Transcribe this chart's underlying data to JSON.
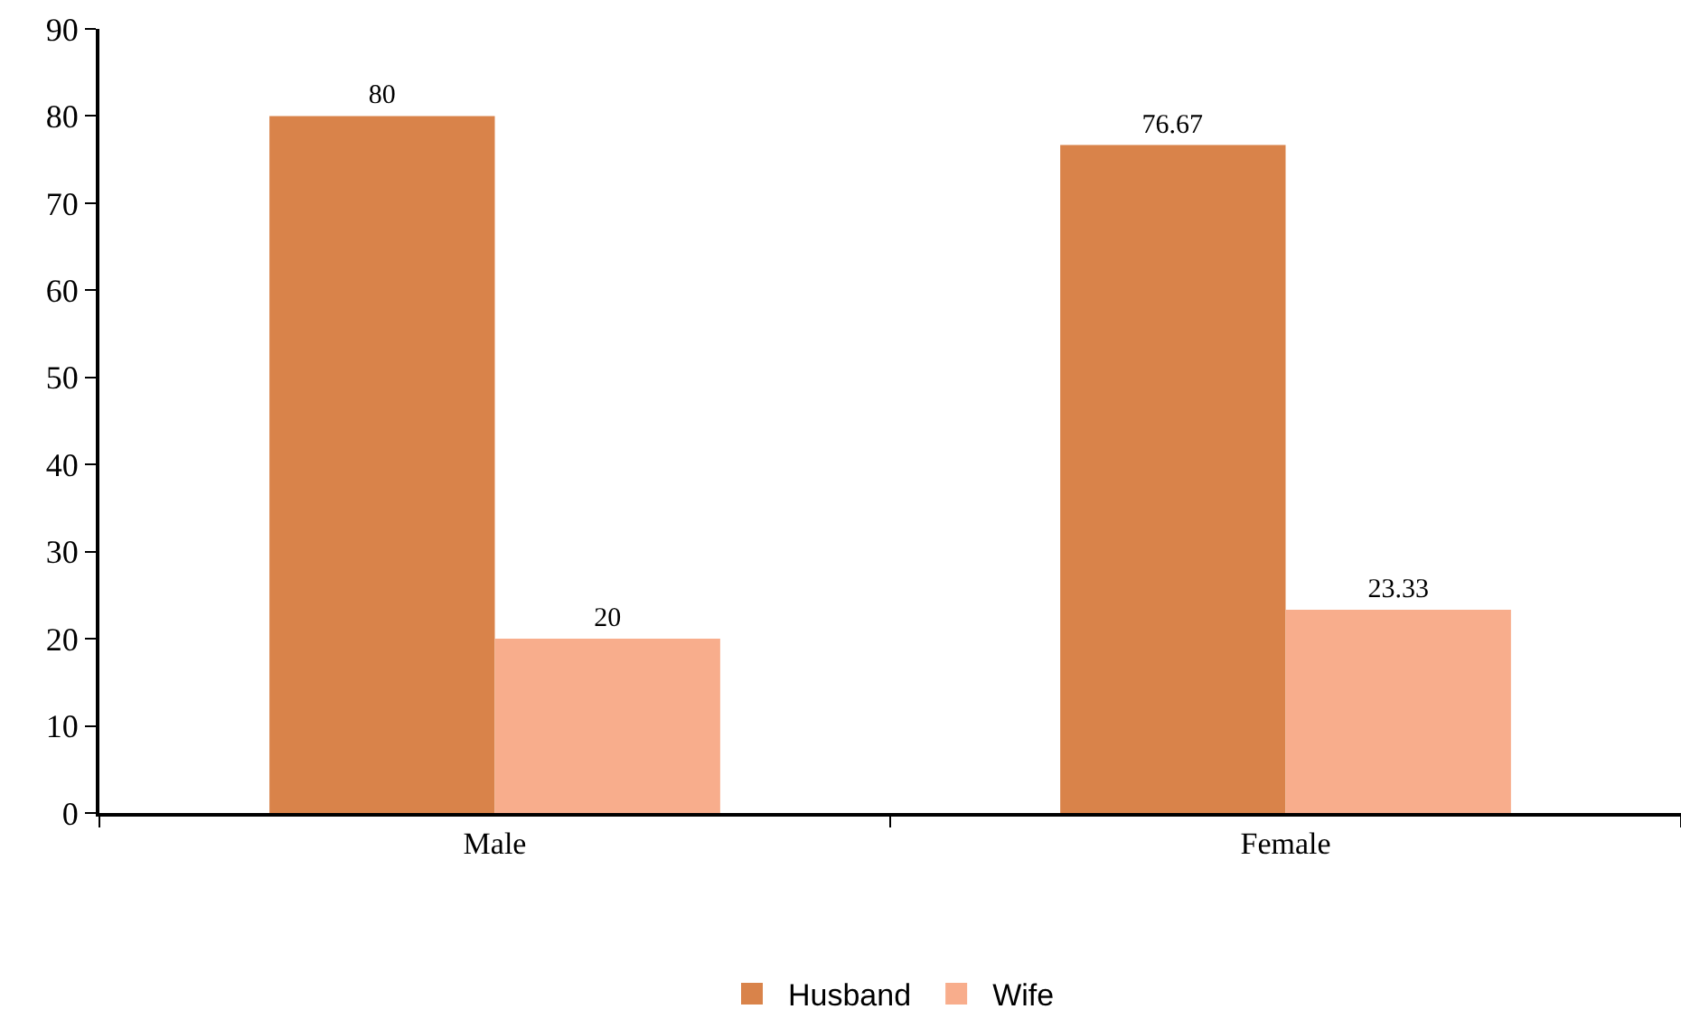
{
  "chart_data": {
    "type": "bar",
    "categories": [
      "Male",
      "Female"
    ],
    "series": [
      {
        "name": "Husband",
        "color": "#d9834a",
        "values": [
          80,
          76.67
        ]
      },
      {
        "name": "Wife",
        "color": "#f8ad8c",
        "values": [
          20,
          23.33
        ]
      }
    ],
    "ylim": [
      0,
      90
    ],
    "yticks": [
      0,
      10,
      20,
      30,
      40,
      50,
      60,
      70,
      80,
      90
    ],
    "data_labels": true,
    "grid": false,
    "legend": "bottom"
  }
}
